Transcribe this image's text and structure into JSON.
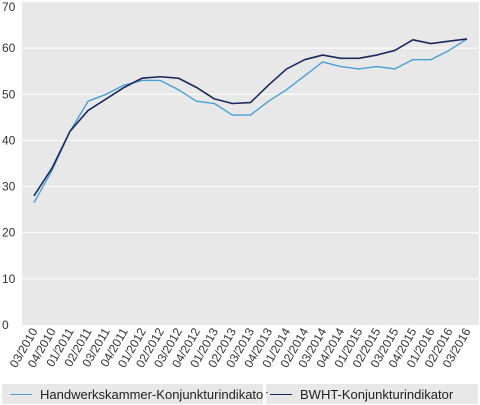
{
  "chart_data": {
    "type": "line",
    "x": [
      "03/2010",
      "04/2010",
      "01/2011",
      "02/2011",
      "03/2011",
      "04/2011",
      "01/2012",
      "02/2012",
      "03/2012",
      "04/2012",
      "01/2013",
      "02/2013",
      "03/2013",
      "04/2013",
      "01/2014",
      "02/2014",
      "03/2014",
      "04/2014",
      "01/2015",
      "02/2015",
      "03/2015",
      "04/2015",
      "01/2016",
      "02/2016",
      "03/2016"
    ],
    "series": [
      {
        "name": "Handwerkskammer-Konjunkturindikator",
        "color": "#4a9fd4",
        "values": [
          26.5,
          33.5,
          42,
          48.5,
          50,
          52,
          53,
          53,
          51,
          48.5,
          48,
          45.5,
          45.5,
          48.5,
          51,
          54,
          57,
          56,
          55.5,
          56,
          55.5,
          57.5,
          57.5,
          59.5,
          62
        ]
      },
      {
        "name": "BWHT-Konjunkturindikator",
        "color": "#1a2a5e",
        "values": [
          28,
          34,
          42,
          46.5,
          49,
          51.5,
          53.5,
          53.8,
          53.5,
          51.5,
          49,
          48,
          48.2,
          52,
          55.5,
          57.5,
          58.5,
          57.8,
          57.8,
          58.5,
          59.5,
          61.8,
          61,
          61.5,
          62
        ]
      }
    ],
    "ylim": [
      0,
      70
    ],
    "yticks": [
      "0",
      "10",
      "20",
      "30",
      "40",
      "50",
      "60",
      "70"
    ],
    "grid": true,
    "legend": "bottom"
  }
}
